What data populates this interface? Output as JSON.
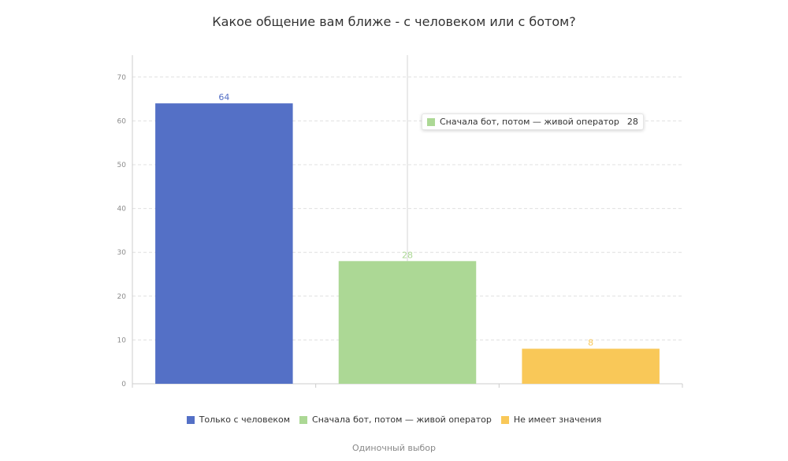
{
  "chart_data": {
    "type": "bar",
    "title": "Какое общение вам ближе - с человеком или с ботом?",
    "categories": [
      "Только с человеком",
      "Сначала бот, потом — живой оператор",
      "Не имеет значения"
    ],
    "values": [
      64,
      28,
      8
    ],
    "colors": [
      "#5470c6",
      "#acd895",
      "#f9c858"
    ],
    "ylim": [
      0,
      75
    ],
    "yticks": [
      0,
      10,
      20,
      30,
      40,
      50,
      60,
      70
    ],
    "grid": true,
    "legend": "bottom",
    "footer": "Одиночный выбор"
  },
  "tooltip": {
    "label": "Сначала бот, потом — живой оператор",
    "value": "28",
    "color": "#acd895"
  }
}
